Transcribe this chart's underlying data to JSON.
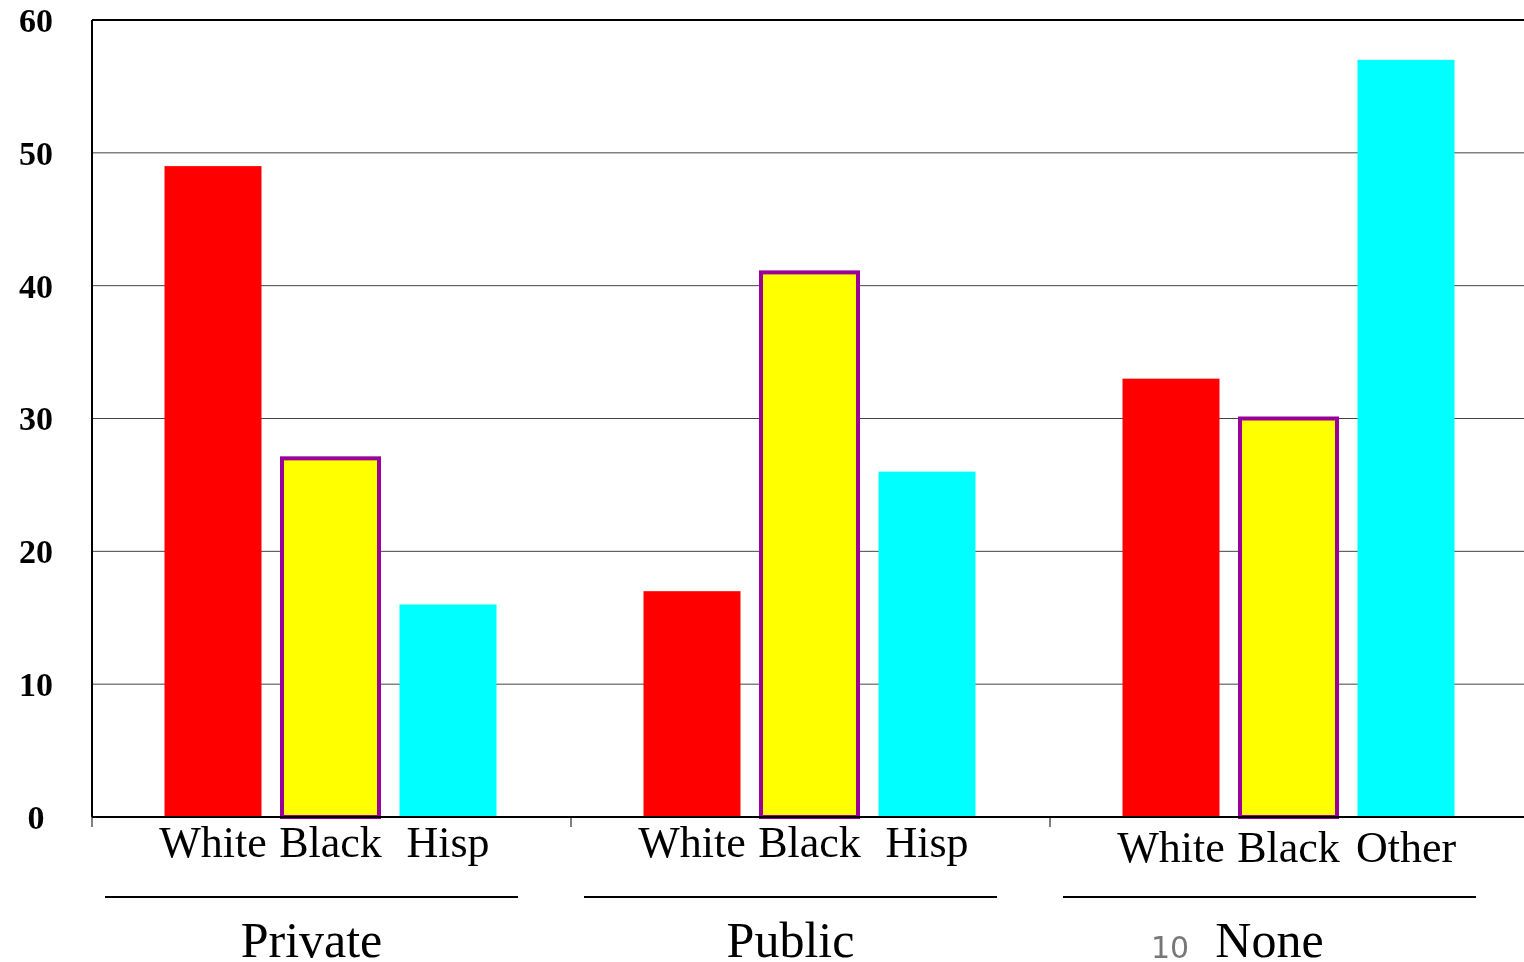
{
  "chart_data": {
    "type": "bar",
    "categories": [
      "White",
      "Black",
      "Hisp",
      "White",
      "Black",
      "Hisp",
      "White",
      "Black",
      "Other"
    ],
    "values": [
      49,
      27,
      16,
      17,
      41,
      26,
      33,
      30,
      57
    ],
    "colors": [
      "#ff0000",
      "#ffff00",
      "#00ffff",
      "#ff0000",
      "#ffff00",
      "#00ffff",
      "#ff0000",
      "#ffff00",
      "#00ffff"
    ],
    "ylim": [
      0,
      60
    ],
    "yticks": [
      0,
      10,
      20,
      30,
      40,
      50,
      60
    ],
    "grid": "y",
    "annotations": [
      "Private",
      "Public",
      "None",
      "10"
    ]
  }
}
